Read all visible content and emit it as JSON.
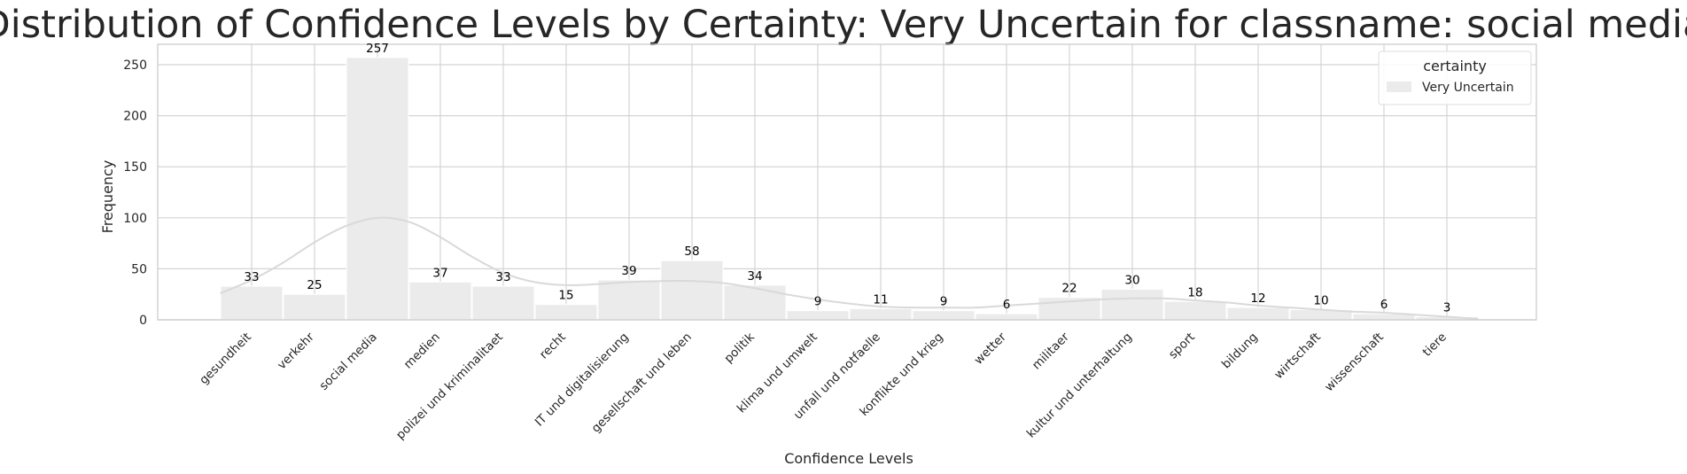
{
  "chart_data": {
    "type": "bar",
    "title": "Distribution of Confidence Levels by Certainty: Very Uncertain for classname: social media",
    "xlabel": "Confidence Levels",
    "ylabel": "Frequency",
    "ylim": [
      0,
      270
    ],
    "yticks": [
      0,
      50,
      100,
      150,
      200,
      250
    ],
    "grid": true,
    "categories": [
      "gesundheit",
      "verkehr",
      "social media",
      "medien",
      "polizei und kriminalitaet",
      "recht",
      "IT und digitalisierung",
      "gesellschaft und leben",
      "politik",
      "klima und umwelt",
      "unfall und notfaelle",
      "konflikte und krieg",
      "wetter",
      "militaer",
      "kultur und unterhaltung",
      "sport",
      "bildung",
      "wirtschaft",
      "wissenschaft",
      "tiere"
    ],
    "series": [
      {
        "name": "Very Uncertain",
        "values": [
          33,
          25,
          257,
          37,
          33,
          15,
          39,
          58,
          34,
          9,
          11,
          9,
          6,
          22,
          30,
          18,
          12,
          10,
          6,
          3
        ],
        "color": "#ebebeb"
      }
    ],
    "kde": {
      "x": [
        -0.5,
        0,
        0.5,
        1,
        1.5,
        2,
        2.5,
        3,
        3.5,
        4,
        4.5,
        5,
        5.5,
        6,
        6.5,
        7,
        7.5,
        8,
        8.5,
        9,
        9.5,
        10,
        10.5,
        11,
        11.5,
        12,
        12.5,
        13,
        13.5,
        14,
        14.5,
        15,
        15.5,
        16,
        16.5,
        17,
        17.5,
        18,
        18.5,
        19,
        19.5
      ],
      "y": [
        26,
        39,
        56,
        76,
        92,
        100,
        96,
        81,
        62,
        46,
        37,
        34,
        35,
        37,
        38,
        38,
        36,
        31,
        25,
        20,
        16,
        13,
        12,
        12,
        12,
        14,
        16,
        18,
        20,
        21,
        21,
        19,
        17,
        14,
        12,
        10,
        8,
        7,
        5,
        3,
        1
      ],
      "color": "#d9d9d9"
    },
    "legend": {
      "title": "certainty",
      "placement": "top-right",
      "entries": [
        "Very Uncertain"
      ]
    }
  }
}
